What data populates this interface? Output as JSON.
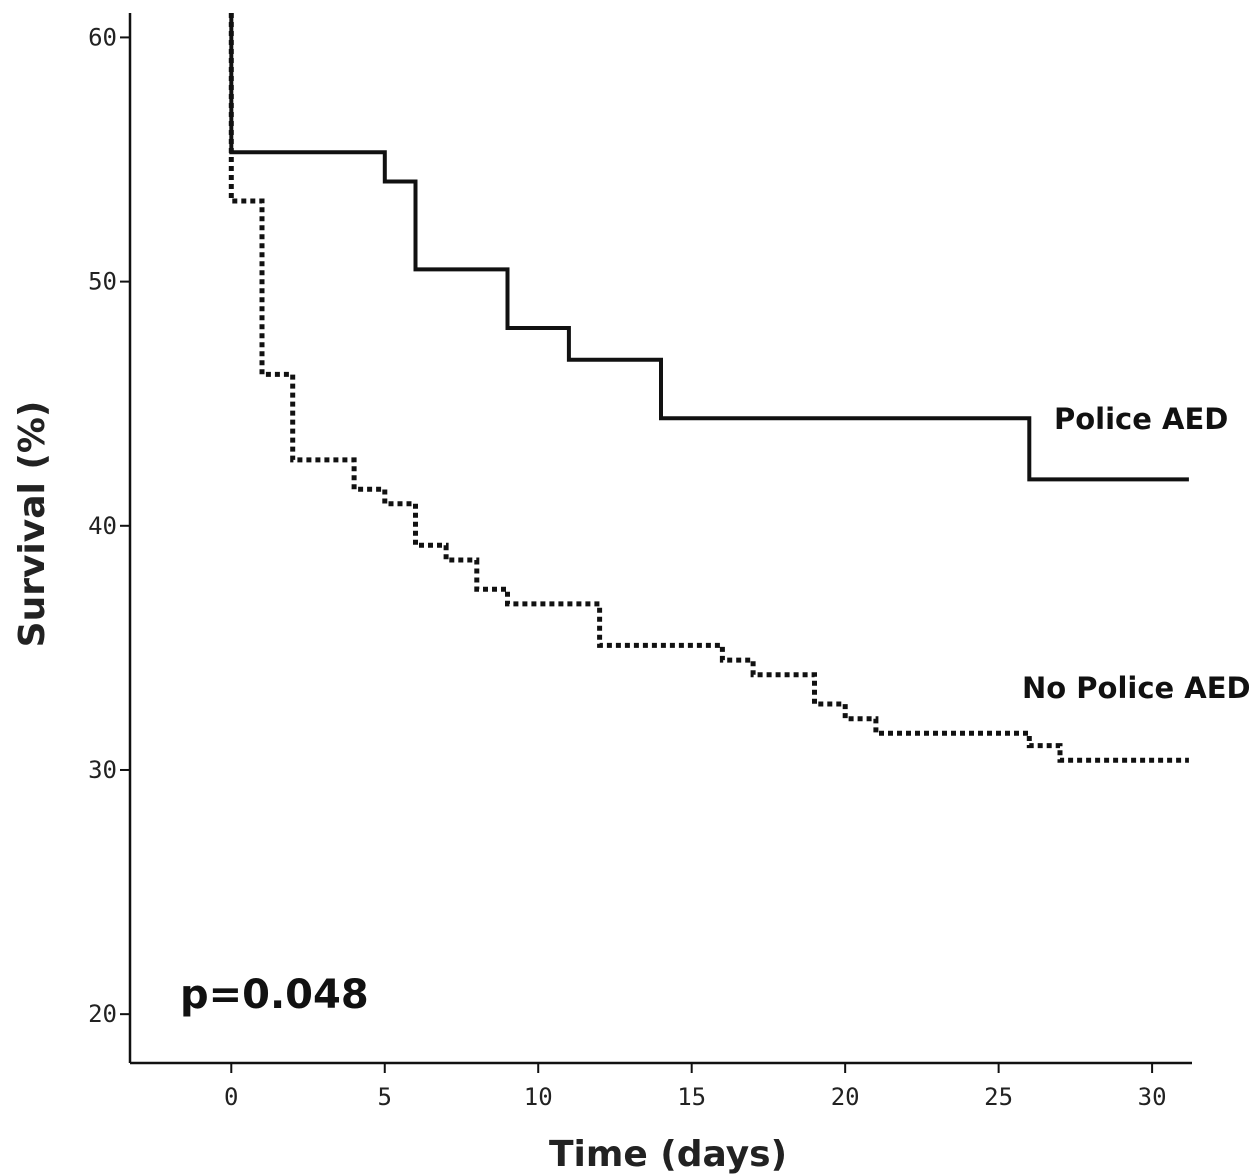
{
  "chart_data": {
    "type": "line",
    "subtype": "kaplan-meier step",
    "title": "",
    "xlabel": "Time (days)",
    "ylabel": "Survival (%)",
    "xlim": [
      -3.3,
      31.3
    ],
    "ylim": [
      18,
      61
    ],
    "xticks": [
      0,
      5,
      10,
      15,
      20,
      25,
      30
    ],
    "yticks": [
      20,
      30,
      40,
      50,
      60
    ],
    "grid": false,
    "legend": "inline labels at right",
    "annotation": "p=0.048",
    "series": [
      {
        "name": "Police AED",
        "style": "solid",
        "label": "Police AED",
        "points": [
          [
            0,
            61
          ],
          [
            0,
            55.3
          ],
          [
            5,
            55.3
          ],
          [
            5,
            54.1
          ],
          [
            6,
            54.1
          ],
          [
            6,
            50.5
          ],
          [
            9,
            50.5
          ],
          [
            9,
            48.1
          ],
          [
            11,
            48.1
          ],
          [
            11,
            46.8
          ],
          [
            14,
            46.8
          ],
          [
            14,
            44.4
          ],
          [
            26,
            44.4
          ],
          [
            26,
            41.9
          ],
          [
            31.2,
            41.9
          ]
        ]
      },
      {
        "name": "No Police AED",
        "style": "dotted",
        "label": "No Police AED",
        "points": [
          [
            0,
            61
          ],
          [
            0,
            53.3
          ],
          [
            1,
            53.3
          ],
          [
            1,
            46.2
          ],
          [
            2,
            46.2
          ],
          [
            2,
            42.7
          ],
          [
            4,
            42.7
          ],
          [
            4,
            41.5
          ],
          [
            5,
            41.5
          ],
          [
            5,
            40.9
          ],
          [
            6,
            40.9
          ],
          [
            6,
            39.2
          ],
          [
            7,
            39.2
          ],
          [
            7,
            38.6
          ],
          [
            8,
            38.6
          ],
          [
            8,
            37.4
          ],
          [
            9,
            37.4
          ],
          [
            9,
            36.8
          ],
          [
            12,
            36.8
          ],
          [
            12,
            35.1
          ],
          [
            16,
            35.1
          ],
          [
            16,
            34.5
          ],
          [
            17,
            34.5
          ],
          [
            17,
            33.9
          ],
          [
            19,
            33.9
          ],
          [
            19,
            32.7
          ],
          [
            20,
            32.7
          ],
          [
            20,
            32.1
          ],
          [
            21,
            32.1
          ],
          [
            21,
            31.5
          ],
          [
            26,
            31.5
          ],
          [
            26,
            31.0
          ],
          [
            27,
            31.0
          ],
          [
            27,
            30.4
          ],
          [
            31.2,
            30.4
          ]
        ]
      }
    ]
  }
}
